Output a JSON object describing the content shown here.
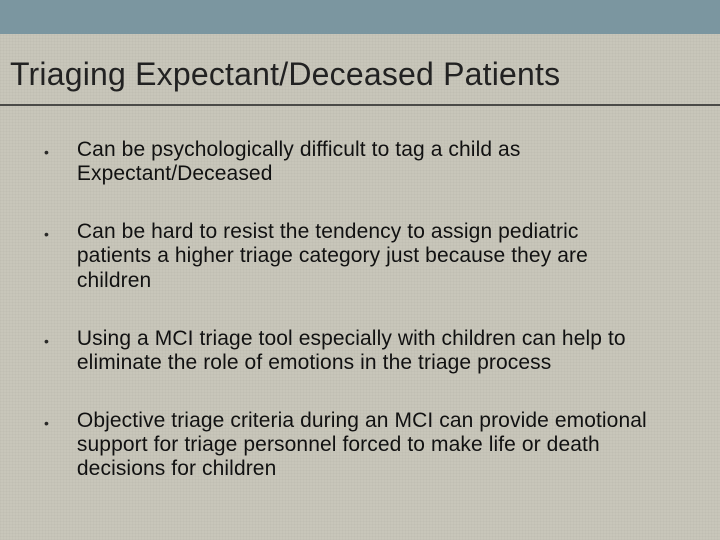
{
  "slide": {
    "title": "Triaging Expectant/Deceased Patients",
    "bullets": [
      {
        "text": "Can be psychologically difficult to tag a child as Expectant/Deceased"
      },
      {
        "text": "Can be hard to resist the tendency to assign pediatric patients a higher triage category just because they are children"
      },
      {
        "text": "Using a MCI triage tool especially with children can help to eliminate the role of emotions in the triage process"
      },
      {
        "text": "Objective triage criteria during an MCI can provide emotional support for triage personnel forced to make life or death decisions for children"
      }
    ]
  },
  "style": {
    "background_color": "#c8c6ba",
    "top_band_color": "#7b96a0",
    "underline_color": "#4a4a47",
    "title_color": "#222222",
    "bullet_text_color": "#111111",
    "title_fontsize": 32,
    "bullet_fontsize": 21,
    "bullet_marker": "•"
  }
}
